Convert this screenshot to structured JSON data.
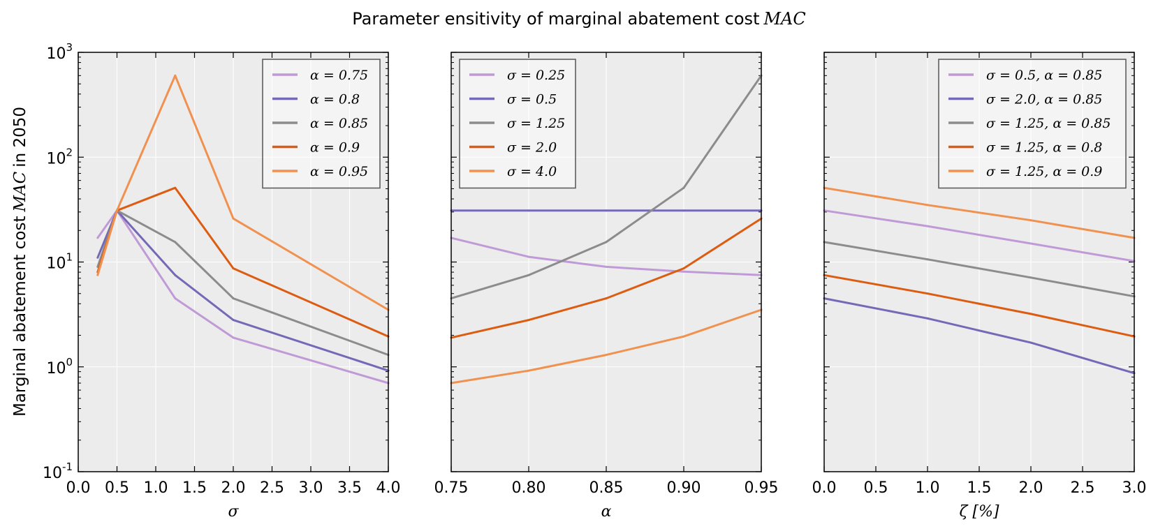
{
  "figure": {
    "title": "Parameter ensitivity of marginal abatement cost",
    "title_math": "MAC",
    "ylabel_prefix": "Marginal abatement cost",
    "ylabel_math": "MAC",
    "ylabel_suffix": "in 2050"
  },
  "colors": {
    "lilac": "#c09ad6",
    "purple": "#7469b6",
    "gray": "#8c8c8c",
    "orange": "#dc5c12",
    "lightorange": "#f0914f",
    "panel_bg": "#ececec",
    "grid": "#ffffff"
  },
  "chart_data": [
    {
      "type": "line",
      "xlabel": "σ",
      "ylabel": "Marginal abatement cost MAC in 2050",
      "yscale": "log",
      "xlim": [
        0,
        4
      ],
      "ylim": [
        0.1,
        1000
      ],
      "xticks": [
        0,
        0.5,
        1,
        1.5,
        2,
        2.5,
        3,
        3.5,
        4
      ],
      "xtick_labels": [
        "0.0",
        "0.5",
        "1.0",
        "1.5",
        "2.0",
        "2.5",
        "3.0",
        "3.5",
        "4.0"
      ],
      "yticks": [
        0.1,
        1,
        10,
        100,
        1000
      ],
      "ytick_labels": [
        {
          "b": "10",
          "e": "-1"
        },
        {
          "b": "10",
          "e": "0"
        },
        {
          "b": "10",
          "e": "1"
        },
        {
          "b": "10",
          "e": "2"
        },
        {
          "b": "10",
          "e": "3"
        }
      ],
      "grid": true,
      "legend_position": "top-right",
      "series": [
        {
          "name": "α = 0.75",
          "color": "#c09ad6",
          "x": [
            0.25,
            0.5,
            1.25,
            2.0,
            4.0
          ],
          "y": [
            17,
            31,
            4.5,
            1.9,
            0.7
          ]
        },
        {
          "name": "α = 0.8",
          "color": "#7469b6",
          "x": [
            0.25,
            0.5,
            1.25,
            2.0,
            4.0
          ],
          "y": [
            11,
            31,
            7.5,
            2.8,
            0.92
          ]
        },
        {
          "name": "α = 0.85",
          "color": "#8c8c8c",
          "x": [
            0.25,
            0.5,
            1.25,
            2.0,
            4.0
          ],
          "y": [
            9,
            31,
            15.5,
            4.5,
            1.3
          ]
        },
        {
          "name": "α = 0.9",
          "color": "#dc5c12",
          "x": [
            0.25,
            0.5,
            1.25,
            2.0,
            4.0
          ],
          "y": [
            8,
            31,
            51,
            8.7,
            1.95
          ]
        },
        {
          "name": "α = 0.95",
          "color": "#f0914f",
          "x": [
            0.25,
            0.5,
            1.25,
            2.0,
            4.0
          ],
          "y": [
            7.5,
            31,
            600,
            26,
            3.5
          ]
        }
      ]
    },
    {
      "type": "line",
      "xlabel": "α",
      "yscale": "log",
      "xlim": [
        0.75,
        0.95
      ],
      "ylim": [
        0.1,
        1000
      ],
      "xticks": [
        0.75,
        0.8,
        0.85,
        0.9,
        0.95
      ],
      "xtick_labels": [
        "0.75",
        "0.80",
        "0.85",
        "0.90",
        "0.95"
      ],
      "yticks": [
        0.1,
        1,
        10,
        100,
        1000
      ],
      "grid": true,
      "legend_position": "top-left",
      "series": [
        {
          "name": "σ = 0.25",
          "color": "#c09ad6",
          "x": [
            0.75,
            0.8,
            0.85,
            0.9,
            0.95
          ],
          "y": [
            17,
            11.2,
            9,
            8.1,
            7.5
          ]
        },
        {
          "name": "σ = 0.5",
          "color": "#7469b6",
          "x": [
            0.75,
            0.8,
            0.85,
            0.9,
            0.95
          ],
          "y": [
            31,
            31,
            31,
            31,
            31
          ]
        },
        {
          "name": "σ = 1.25",
          "color": "#8c8c8c",
          "x": [
            0.75,
            0.8,
            0.85,
            0.9,
            0.95
          ],
          "y": [
            4.5,
            7.5,
            15.5,
            51,
            600
          ]
        },
        {
          "name": "σ = 2.0",
          "color": "#dc5c12",
          "x": [
            0.75,
            0.8,
            0.85,
            0.9,
            0.95
          ],
          "y": [
            1.9,
            2.8,
            4.5,
            8.7,
            26
          ]
        },
        {
          "name": "σ = 4.0",
          "color": "#f0914f",
          "x": [
            0.75,
            0.8,
            0.85,
            0.9,
            0.95
          ],
          "y": [
            0.7,
            0.92,
            1.3,
            1.95,
            3.5
          ]
        }
      ]
    },
    {
      "type": "line",
      "xlabel": "ζ [%]",
      "yscale": "log",
      "xlim": [
        0,
        3
      ],
      "ylim": [
        0.1,
        1000
      ],
      "xticks": [
        0,
        0.5,
        1,
        1.5,
        2,
        2.5,
        3
      ],
      "xtick_labels": [
        "0.0",
        "0.5",
        "1.0",
        "1.5",
        "2.0",
        "2.5",
        "3.0"
      ],
      "yticks": [
        0.1,
        1,
        10,
        100,
        1000
      ],
      "grid": true,
      "legend_position": "top-right",
      "series": [
        {
          "name": "σ = 0.5,  α = 0.85",
          "color": "#c09ad6",
          "x": [
            0,
            1,
            2,
            3
          ],
          "y": [
            31,
            22,
            15,
            10.2
          ]
        },
        {
          "name": "σ = 2.0,  α = 0.85",
          "color": "#7469b6",
          "x": [
            0,
            1,
            2,
            3
          ],
          "y": [
            4.5,
            2.9,
            1.7,
            0.87
          ]
        },
        {
          "name": "σ = 1.25,  α = 0.85",
          "color": "#8c8c8c",
          "x": [
            0,
            1,
            2,
            3
          ],
          "y": [
            15.5,
            10.6,
            7.1,
            4.7
          ]
        },
        {
          "name": "σ = 1.25,  α = 0.8",
          "color": "#dc5c12",
          "x": [
            0,
            1,
            2,
            3
          ],
          "y": [
            7.5,
            5,
            3.2,
            1.95
          ]
        },
        {
          "name": "σ = 1.25,  α = 0.9",
          "color": "#f0914f",
          "x": [
            0,
            1,
            2,
            3
          ],
          "y": [
            51,
            35,
            25,
            17
          ]
        }
      ]
    }
  ]
}
